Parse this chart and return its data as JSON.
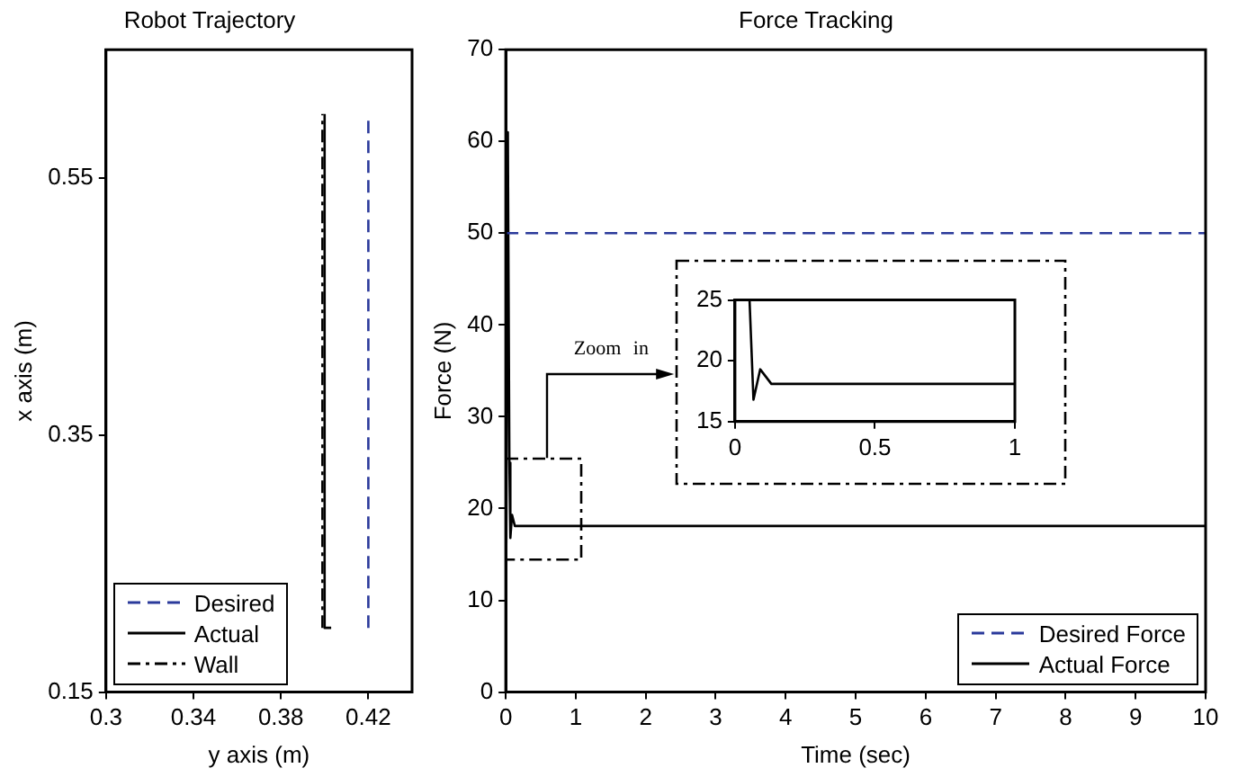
{
  "chart_data": [
    {
      "type": "line",
      "title": "Robot Trajectory",
      "xlabel": "y axis (m)",
      "ylabel": "x axis (m)",
      "xlim": [
        0.3,
        0.44
      ],
      "xticks": [
        0.3,
        0.34,
        0.38,
        0.42
      ],
      "ylim": [
        0.15,
        0.65
      ],
      "yticks": [
        0.15,
        0.35,
        0.55
      ],
      "grid": false,
      "legend": "bottom left",
      "marker": "none",
      "series": [
        {
          "name": "Desired",
          "color": "#2b3a9b",
          "line_style": "dashed",
          "x": [
            0.42,
            0.42
          ],
          "values": [
            0.2,
            0.595
          ]
        },
        {
          "name": "Actual",
          "color": "#000000",
          "line_style": "solid",
          "x": [
            0.403,
            0.4,
            0.4
          ],
          "values": [
            0.2,
            0.2,
            0.6
          ]
        },
        {
          "name": "Wall",
          "color": "#000000",
          "line_style": "dashdot",
          "x": [
            0.399,
            0.399
          ],
          "values": [
            0.2,
            0.6
          ]
        }
      ]
    },
    {
      "type": "line",
      "title": "Force Tracking",
      "xlabel": "Time (sec)",
      "ylabel": "Force (N)",
      "xlim": [
        0,
        10
      ],
      "xticks": [
        0,
        1,
        2,
        3,
        4,
        5,
        6,
        7,
        8,
        9,
        10
      ],
      "ylim": [
        0,
        70
      ],
      "yticks": [
        0,
        10,
        20,
        30,
        40,
        50,
        60,
        70
      ],
      "grid": false,
      "legend": "bottom right",
      "marker": "none",
      "annotations": [
        "Zoom in"
      ],
      "series": [
        {
          "name": "Desired Force",
          "color": "#2b3a9b",
          "line_style": "dashed",
          "x": [
            0,
            10
          ],
          "values": [
            50,
            50
          ]
        },
        {
          "name": "Actual Force",
          "color": "#000000",
          "line_style": "solid",
          "x": [
            0,
            0.03,
            0.052,
            0.066,
            0.09,
            0.13,
            0.2,
            10
          ],
          "values": [
            0,
            61,
            25,
            16.8,
            19.3,
            18.1,
            18.1,
            18.1
          ]
        }
      ]
    },
    {
      "type": "line",
      "xlim": [
        0,
        1
      ],
      "xticks": [
        0,
        0.5,
        1
      ],
      "ylim": [
        15,
        25
      ],
      "yticks": [
        15,
        20,
        25
      ],
      "grid": false,
      "marker": "none",
      "series": [
        {
          "color": "#000000",
          "line_style": "solid",
          "x": [
            0.052,
            0.066,
            0.09,
            0.13,
            0.2,
            1
          ],
          "values": [
            25,
            16.8,
            19.3,
            18.1,
            18.1,
            18.1
          ]
        }
      ]
    }
  ]
}
